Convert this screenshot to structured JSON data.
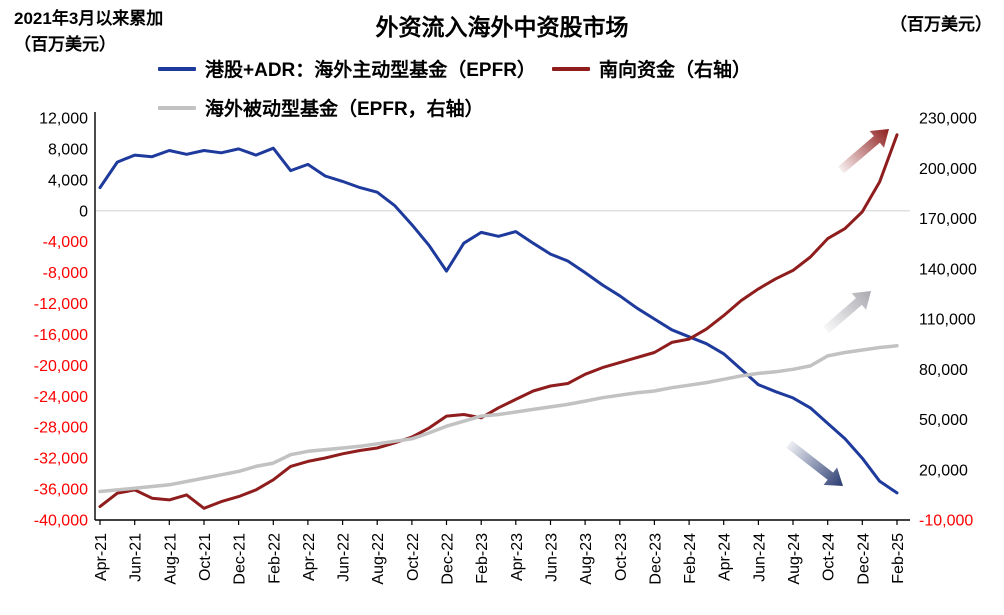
{
  "header": {
    "note_line1": "2021年3月以来累加",
    "note_line2": "（百万美元）",
    "title": "外资流入海外中资股市场",
    "right_unit": "（百万美元）"
  },
  "legend": [
    {
      "label": "港股+ADR：海外主动型基金（EPFR）",
      "color": "#1E3A9C"
    },
    {
      "label": "南向资金（右轴）",
      "color": "#8F1D1D"
    },
    {
      "label": "海外被动型基金（EPFR，右轴）",
      "color": "#C2C2C2"
    }
  ],
  "chart_data": {
    "type": "line",
    "title": "外资流入海外中资股市场",
    "subtitle_left": "2021年3月以来累加（百万美元）",
    "unit_right": "百万美元",
    "grid": "horizontal zero-line only",
    "legend_position": "top",
    "x_frequency": "monthly",
    "months": [
      "Apr-21",
      "May-21",
      "Jun-21",
      "Jul-21",
      "Aug-21",
      "Sep-21",
      "Oct-21",
      "Nov-21",
      "Dec-21",
      "Jan-22",
      "Feb-22",
      "Mar-22",
      "Apr-22",
      "May-22",
      "Jun-22",
      "Jul-22",
      "Aug-22",
      "Sep-22",
      "Oct-22",
      "Nov-22",
      "Dec-22",
      "Jan-23",
      "Feb-23",
      "Mar-23",
      "Apr-23",
      "May-23",
      "Jun-23",
      "Jul-23",
      "Aug-23",
      "Sep-23",
      "Oct-23",
      "Nov-23",
      "Dec-23",
      "Jan-24",
      "Feb-24",
      "Mar-24",
      "Apr-24",
      "May-24",
      "Jun-24",
      "Jul-24",
      "Aug-24",
      "Sep-24",
      "Oct-24",
      "Nov-24",
      "Dec-24",
      "Jan-25",
      "Feb-25"
    ],
    "x_ticks": [
      "Apr-21",
      "Jun-21",
      "Aug-21",
      "Oct-21",
      "Dec-21",
      "Feb-22",
      "Apr-22",
      "Jun-22",
      "Aug-22",
      "Oct-22",
      "Dec-22",
      "Feb-23",
      "Apr-23",
      "Jun-23",
      "Aug-23",
      "Oct-23",
      "Dec-23",
      "Feb-24",
      "Apr-24",
      "Jun-24",
      "Aug-24",
      "Oct-24",
      "Dec-24",
      "Feb-25"
    ],
    "left_axis": {
      "min": -40000,
      "max": 12000,
      "step": 4000,
      "negative_color": "#FF0000",
      "ticks": [
        {
          "label": "12,000",
          "value": 12000
        },
        {
          "label": "8,000",
          "value": 8000
        },
        {
          "label": "4,000",
          "value": 4000
        },
        {
          "label": "0",
          "value": 0
        },
        {
          "label": "-4,000",
          "value": -4000
        },
        {
          "label": "-8,000",
          "value": -8000
        },
        {
          "label": "-12,000",
          "value": -12000
        },
        {
          "label": "-16,000",
          "value": -16000
        },
        {
          "label": "-20,000",
          "value": -20000
        },
        {
          "label": "-24,000",
          "value": -24000
        },
        {
          "label": "-28,000",
          "value": -28000
        },
        {
          "label": "-32,000",
          "value": -32000
        },
        {
          "label": "-36,000",
          "value": -36000
        },
        {
          "label": "-40,000",
          "value": -40000
        }
      ]
    },
    "right_axis": {
      "min": -10000,
      "max": 230000,
      "step": 30000,
      "negative_color": "#FF0000",
      "ticks": [
        {
          "label": "230,000",
          "value": 230000
        },
        {
          "label": "200,000",
          "value": 200000
        },
        {
          "label": "170,000",
          "value": 170000
        },
        {
          "label": "140,000",
          "value": 140000
        },
        {
          "label": "110,000",
          "value": 110000
        },
        {
          "label": "80,000",
          "value": 80000
        },
        {
          "label": "50,000",
          "value": 50000
        },
        {
          "label": "20,000",
          "value": 20000
        },
        {
          "label": "-10,000",
          "value": -10000
        }
      ]
    },
    "series": [
      {
        "name": "港股+ADR：海外主动型基金（EPFR）",
        "axis": "left",
        "color": "#1E3A9C",
        "width": 3,
        "values": [
          3000,
          6300,
          7200,
          7000,
          7800,
          7300,
          7800,
          7500,
          8000,
          7200,
          8100,
          5200,
          6000,
          4500,
          3800,
          3000,
          2400,
          700,
          -1800,
          -4500,
          -7800,
          -4200,
          -2800,
          -3300,
          -2700,
          -4200,
          -5600,
          -6500,
          -8000,
          -9600,
          -11000,
          -12600,
          -14000,
          -15400,
          -16300,
          -17200,
          -18500,
          -20500,
          -22500,
          -23400,
          -24200,
          -25500,
          -27500,
          -29500,
          -32000,
          -35000,
          -36500
        ]
      },
      {
        "name": "南向资金（右轴）",
        "axis": "right",
        "color": "#8F1D1D",
        "width": 3,
        "values": [
          -2000,
          6000,
          8000,
          3000,
          2000,
          5000,
          -3000,
          1000,
          4000,
          8000,
          14000,
          22000,
          25000,
          27000,
          29500,
          31500,
          33000,
          36000,
          39500,
          45000,
          52000,
          53000,
          51000,
          57000,
          62000,
          67000,
          70000,
          71500,
          77000,
          81000,
          84000,
          87000,
          90000,
          96000,
          98000,
          104000,
          112000,
          121000,
          128000,
          134000,
          139000,
          147000,
          158000,
          164000,
          174000,
          192000,
          220000
        ]
      },
      {
        "name": "海外被动型基金（EPFR，右轴）",
        "axis": "right",
        "color": "#C2C2C2",
        "width": 3.5,
        "values": [
          7000,
          8000,
          9000,
          10000,
          11000,
          13000,
          15000,
          17000,
          19000,
          22000,
          24000,
          29000,
          31000,
          32000,
          33000,
          34000,
          35500,
          37000,
          38500,
          42000,
          46000,
          49000,
          52000,
          53000,
          54500,
          56000,
          57500,
          59000,
          61000,
          63000,
          64500,
          66000,
          67000,
          69000,
          70500,
          72000,
          74000,
          76000,
          77500,
          78500,
          80000,
          82000,
          88000,
          90000,
          91500,
          93000,
          94000
        ]
      }
    ]
  }
}
